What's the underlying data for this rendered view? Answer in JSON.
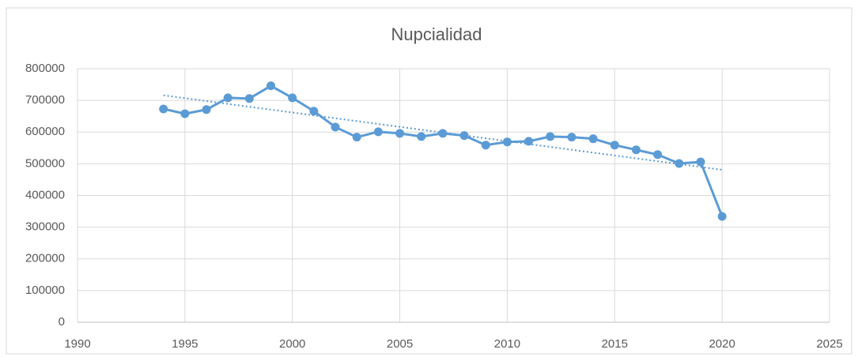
{
  "chart_data": {
    "type": "line",
    "title": "Nupcialidad",
    "x": [
      1994,
      1995,
      1996,
      1997,
      1998,
      1999,
      2000,
      2001,
      2002,
      2003,
      2004,
      2005,
      2006,
      2007,
      2008,
      2009,
      2010,
      2011,
      2012,
      2013,
      2014,
      2015,
      2016,
      2017,
      2018,
      2019,
      2020
    ],
    "series": [
      {
        "color": "#5b9bd5",
        "values": [
          673000,
          658000,
          671000,
          708000,
          706000,
          746000,
          708000,
          666000,
          616000,
          584000,
          601000,
          596000,
          586000,
          596000,
          589000,
          559000,
          569000,
          571000,
          586000,
          584000,
          579000,
          559000,
          544000,
          529000,
          501000,
          506000,
          334000
        ]
      }
    ],
    "trendline": {
      "x": [
        1994,
        2020
      ],
      "values": [
        716000,
        481000
      ],
      "color": "#5b9bd5",
      "style": "dotted"
    },
    "xlim": [
      1990,
      2025
    ],
    "xticks": [
      1990,
      1995,
      2000,
      2005,
      2010,
      2015,
      2020,
      2025
    ],
    "ylim": [
      0,
      800000
    ],
    "yticks": [
      0,
      100000,
      200000,
      300000,
      400000,
      500000,
      600000,
      700000,
      800000
    ],
    "grid": true
  }
}
